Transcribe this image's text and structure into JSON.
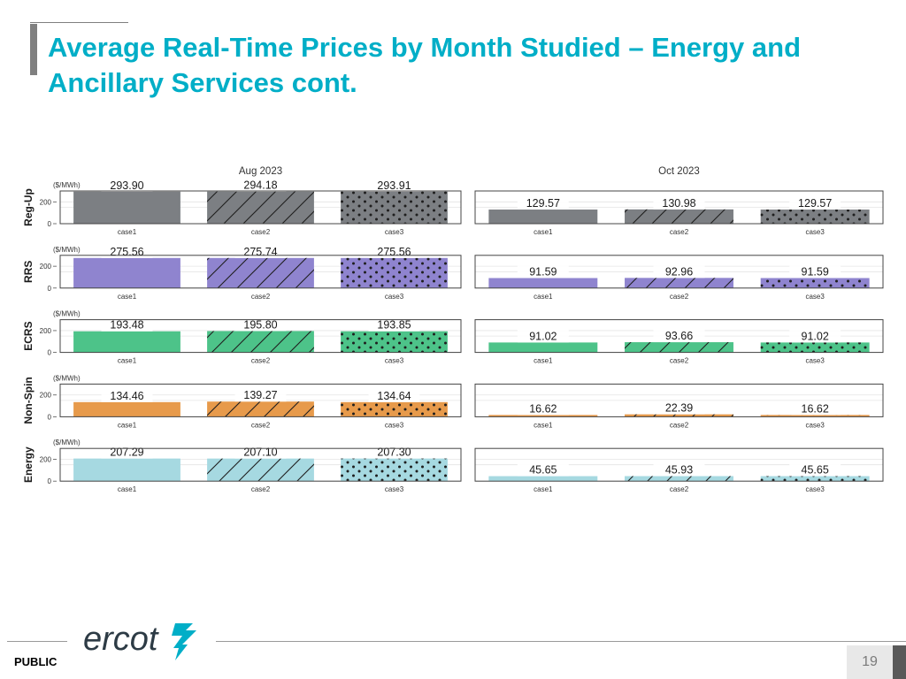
{
  "slide": {
    "title": "Average Real-Time Prices by Month Studied – Energy and Ancillary Services cont.",
    "footer_label": "PUBLIC",
    "page_number": "19",
    "logo_text": "ercot",
    "accent_color": "#00aec7"
  },
  "chart_data": {
    "type": "bar",
    "unit_label": "($/MWh)",
    "months": [
      "Aug 2023",
      "Oct 2023"
    ],
    "categories": [
      "case1",
      "case2",
      "case3"
    ],
    "patterns": [
      "solid",
      "diagonal-hatch",
      "dots"
    ],
    "ylim": [
      0,
      300
    ],
    "yticks": [
      0,
      200
    ],
    "series": [
      {
        "name": "Reg-Up",
        "color": "#7c7f83",
        "values": [
          [
            293.9,
            294.18,
            293.91
          ],
          [
            129.57,
            130.98,
            129.57
          ]
        ]
      },
      {
        "name": "RRS",
        "color": "#8f84cf",
        "values": [
          [
            275.56,
            275.74,
            275.56
          ],
          [
            91.59,
            92.96,
            91.59
          ]
        ]
      },
      {
        "name": "ECRS",
        "color": "#4dc389",
        "values": [
          [
            193.48,
            195.8,
            193.85
          ],
          [
            91.02,
            93.66,
            91.02
          ]
        ]
      },
      {
        "name": "Non-Spin",
        "color": "#e79a4b",
        "values": [
          [
            134.46,
            139.27,
            134.64
          ],
          [
            16.62,
            22.39,
            16.62
          ]
        ]
      },
      {
        "name": "Energy",
        "color": "#a6d9e1",
        "values": [
          [
            207.29,
            207.1,
            207.3
          ],
          [
            45.65,
            45.93,
            45.65
          ]
        ]
      }
    ]
  }
}
